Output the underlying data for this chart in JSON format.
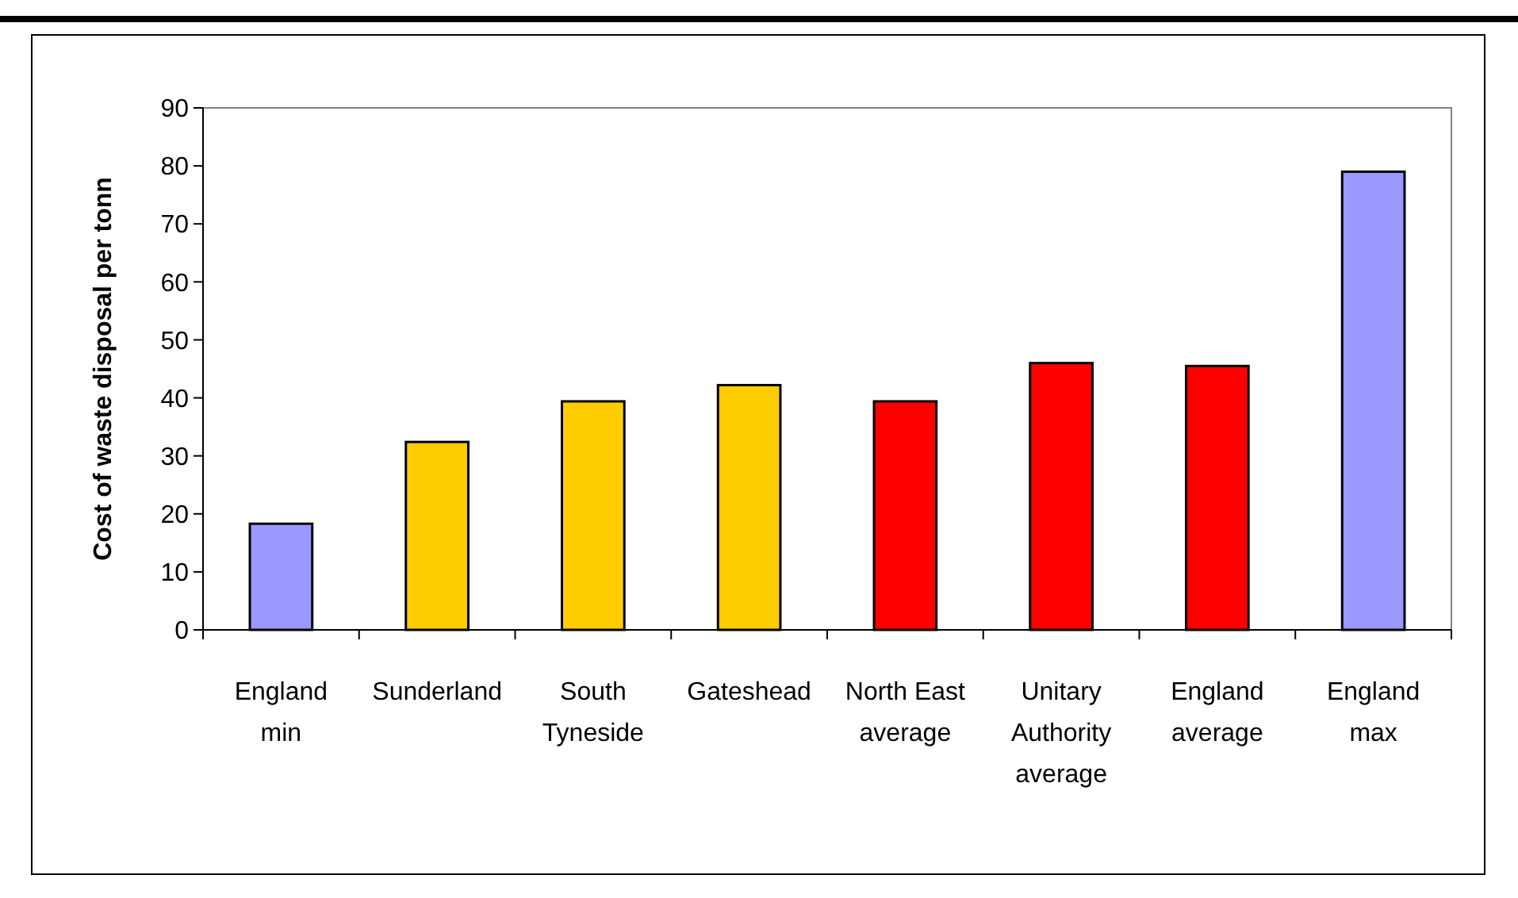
{
  "chart_data": {
    "type": "bar",
    "ylabel": "Cost of waste disposal per tonn",
    "categories": [
      "England min",
      "Sunderland",
      "South Tyneside",
      "Gateshead",
      "North East average",
      "Unitary Authority average",
      "England average",
      "England max"
    ],
    "values": [
      18.3,
      32.4,
      39.4,
      42.2,
      39.4,
      46.0,
      45.5,
      79.0
    ],
    "colors": [
      "#9999ff",
      "#ffcc00",
      "#ffcc00",
      "#ffcc00",
      "#ff0000",
      "#ff0000",
      "#ff0000",
      "#9999ff"
    ],
    "ylim": [
      0,
      90
    ],
    "yticks": [
      0,
      10,
      20,
      30,
      40,
      50,
      60,
      70,
      80,
      90
    ],
    "grid": false
  }
}
